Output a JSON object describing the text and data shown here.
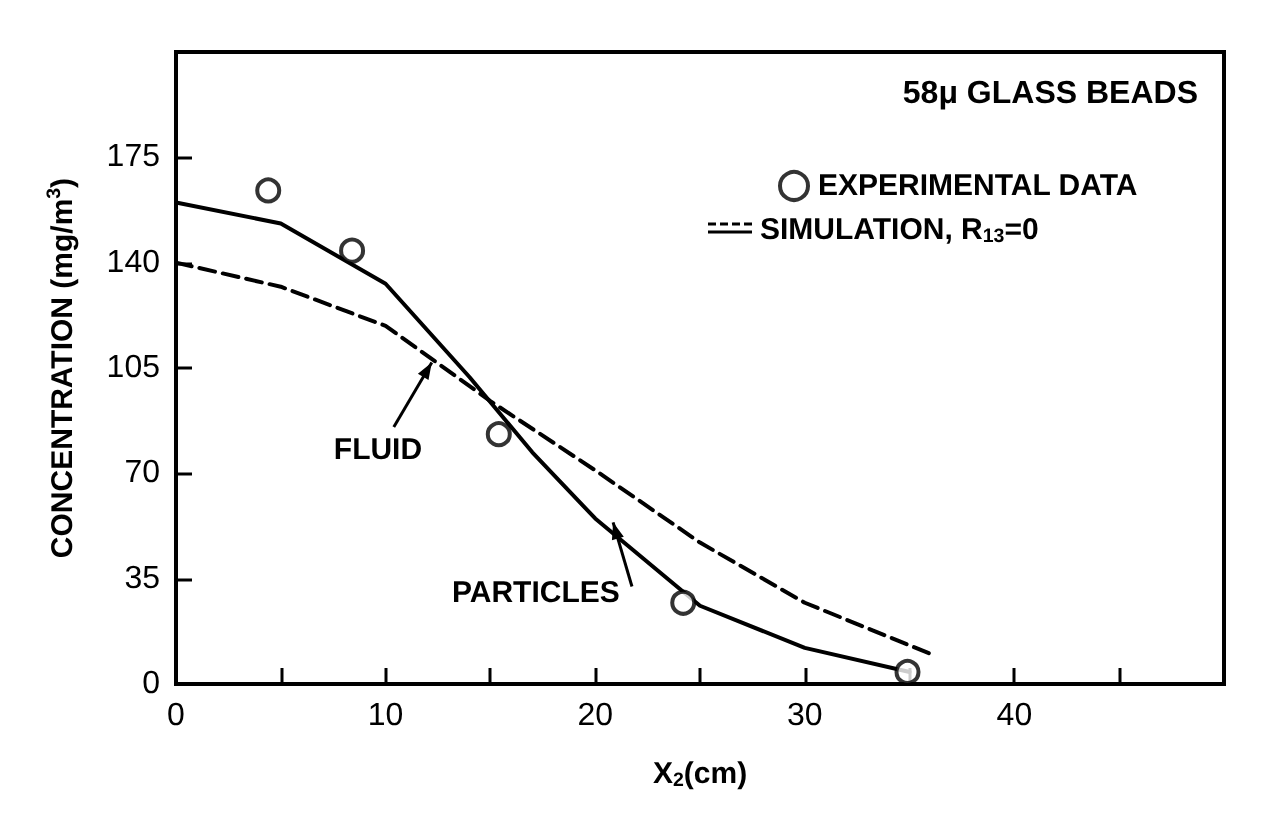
{
  "chart_data": {
    "type": "line",
    "title": "58μ GLASS BEADS",
    "xlabel": "X$_{2}$(cm)",
    "ylabel": "CONCENTRATION (mg/m$^{3}$)",
    "xlim": [
      0,
      50
    ],
    "xticks": [
      0,
      {
        "value": 5,
        "label": null
      },
      10,
      {
        "value": 15,
        "label": null
      },
      20,
      {
        "value": 25,
        "label": null
      },
      30,
      {
        "value": 35,
        "label": null
      },
      40,
      {
        "value": 45,
        "label": null
      }
    ],
    "ylim": [
      0,
      210
    ],
    "yticks": [
      0,
      35,
      70,
      105,
      140,
      175
    ],
    "series": [
      {
        "name": "EXPERIMENTAL DATA",
        "type": "scatter",
        "marker": "circle",
        "color": "#000000",
        "x": [
          4.4,
          8.4,
          15.4,
          24.2,
          34.9
        ],
        "values": [
          164,
          144,
          83,
          27,
          4
        ]
      },
      {
        "type": "line",
        "line_style": "solid",
        "marker": "none",
        "color": "#000000",
        "x": [
          0,
          5,
          10,
          14,
          17,
          20,
          25,
          30,
          35
        ],
        "values": [
          160,
          153,
          133,
          102,
          77,
          55,
          26,
          12,
          4
        ]
      },
      {
        "type": "line",
        "line_style": "dashed",
        "marker": "none",
        "color": "#000000",
        "x": [
          0,
          5,
          10,
          15,
          20,
          25,
          30,
          36
        ],
        "values": [
          140,
          132,
          119,
          94,
          71,
          47,
          27,
          10
        ]
      }
    ],
    "annotations": [
      "SIMULATION, R$_{13}$=0",
      {
        "text": "FLUID",
        "x": 12.3,
        "y": 108
      },
      {
        "text": "PARTICLES",
        "x": 20.8,
        "y": 55
      }
    ],
    "legend": "top right",
    "grid": false
  }
}
